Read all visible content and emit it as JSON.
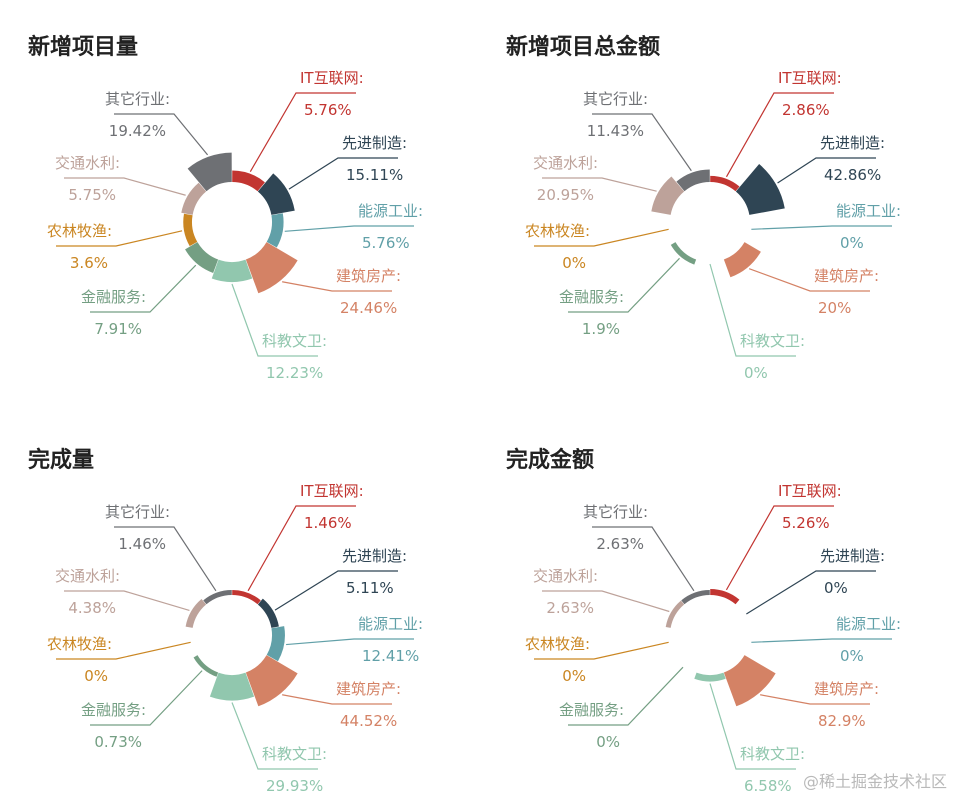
{
  "watermark": "@稀土掘金技术社区",
  "chart_data": [
    {
      "type": "pie",
      "title": "新增项目量",
      "categories": [
        "IT互联网",
        "先进制造",
        "能源工业",
        "建筑房产",
        "科教文卫",
        "金融服务",
        "农林牧渔",
        "交通水利",
        "其它行业"
      ],
      "values": [
        5.76,
        15.11,
        5.76,
        24.46,
        12.23,
        7.91,
        3.6,
        5.75,
        19.42
      ],
      "value_labels": [
        "5.76%",
        "15.11%",
        "5.76%",
        "24.46%",
        "12.23%",
        "7.91%",
        "3.6%",
        "5.75%",
        "19.42%"
      ]
    },
    {
      "type": "pie",
      "title": "新增项目总金额",
      "categories": [
        "IT互联网",
        "先进制造",
        "能源工业",
        "建筑房产",
        "科教文卫",
        "金融服务",
        "农林牧渔",
        "交通水利",
        "其它行业"
      ],
      "values": [
        2.86,
        42.86,
        0,
        20,
        0,
        1.9,
        0,
        20.95,
        11.43
      ],
      "value_labels": [
        "2.86%",
        "42.86%",
        "0%",
        "20%",
        "0%",
        "1.9%",
        "0%",
        "20.95%",
        "11.43%"
      ]
    },
    {
      "type": "pie",
      "title": "完成量",
      "categories": [
        "IT互联网",
        "先进制造",
        "能源工业",
        "建筑房产",
        "科教文卫",
        "金融服务",
        "农林牧渔",
        "交通水利",
        "其它行业"
      ],
      "values": [
        1.46,
        5.11,
        12.41,
        44.52,
        29.93,
        0.73,
        0,
        4.38,
        1.46
      ],
      "value_labels": [
        "1.46%",
        "5.11%",
        "12.41%",
        "44.52%",
        "29.93%",
        "0.73%",
        "0%",
        "4.38%",
        "1.46%"
      ]
    },
    {
      "type": "pie",
      "title": "完成金额",
      "categories": [
        "IT互联网",
        "先进制造",
        "能源工业",
        "建筑房产",
        "科教文卫",
        "金融服务",
        "农林牧渔",
        "交通水利",
        "其它行业"
      ],
      "values": [
        5.26,
        0,
        0,
        82.9,
        6.58,
        0,
        0,
        2.63,
        2.63
      ],
      "value_labels": [
        "5.26%",
        "0%",
        "0%",
        "82.9%",
        "6.58%",
        "0%",
        "0%",
        "2.63%",
        "2.63%"
      ]
    }
  ],
  "colors": [
    "#c23531",
    "#2f4554",
    "#61a0a8",
    "#d48265",
    "#91c7ae",
    "#749f83",
    "#ca8622",
    "#bda29a",
    "#6e7074"
  ]
}
